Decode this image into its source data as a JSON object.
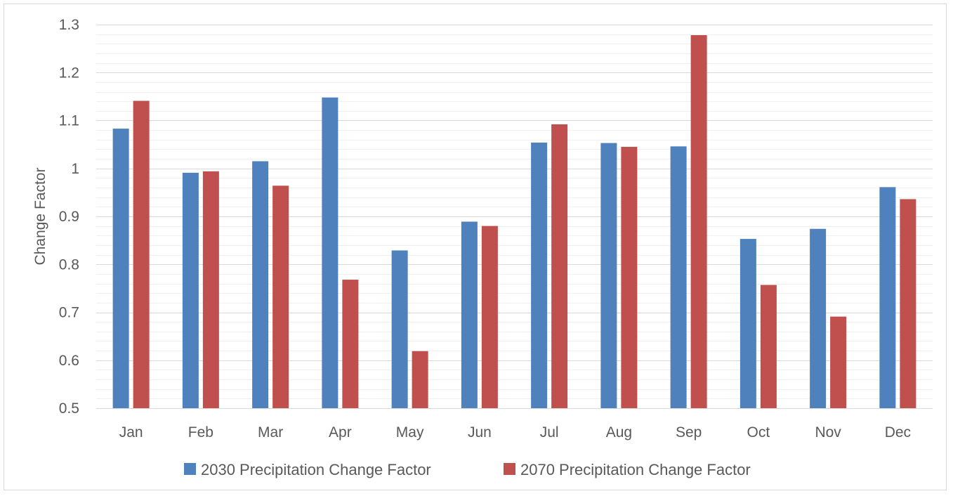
{
  "chart_data": {
    "type": "bar",
    "title": "",
    "xlabel": "",
    "ylabel": "Change Factor",
    "ylim": [
      0.5,
      1.3
    ],
    "yticks": [
      "0.5",
      "0.6",
      "0.7",
      "0.8",
      "0.9",
      "1",
      "1.1",
      "1.2",
      "1.3"
    ],
    "minor_gridlines": true,
    "grid": true,
    "legend_position": "bottom",
    "categories": [
      "Jan",
      "Feb",
      "Mar",
      "Apr",
      "May",
      "Jun",
      "Jul",
      "Aug",
      "Sep",
      "Oct",
      "Nov",
      "Dec"
    ],
    "series": [
      {
        "name": "2030 Precipitation Change Factor",
        "color": "#4f81bd",
        "values": [
          1.083,
          0.991,
          1.015,
          1.148,
          0.829,
          0.889,
          1.054,
          1.053,
          1.046,
          0.853,
          0.874,
          0.961
        ]
      },
      {
        "name": "2070 Precipitation Change Factor",
        "color": "#c0504d",
        "values": [
          1.141,
          0.994,
          0.964,
          0.768,
          0.619,
          0.88,
          1.092,
          1.045,
          1.278,
          0.757,
          0.691,
          0.936
        ]
      }
    ]
  }
}
